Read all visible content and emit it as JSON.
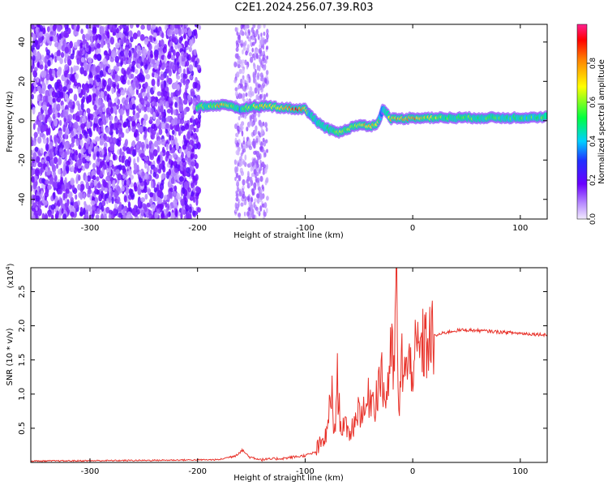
{
  "title": "C2E1.2024.256.07.39.R03",
  "colors": {
    "snr_line": "#e8322a",
    "frame": "#000000"
  },
  "chart_data": [
    {
      "type": "heatmap",
      "xlabel": "Height of straight line (km)",
      "ylabel": "Frequency (Hz)",
      "xlim": [
        -355,
        125
      ],
      "ylim": [
        -50,
        49
      ],
      "xticks": [
        -300,
        -200,
        -100,
        0,
        100
      ],
      "xtick_labels": [
        "-300",
        "-200",
        "-100",
        "0",
        "100"
      ],
      "yticks": [
        -40,
        -20,
        0,
        20,
        40
      ],
      "ytick_labels": [
        "-40",
        "-20",
        "0",
        "20",
        "40"
      ],
      "colorbar": {
        "label": "Normalized spectral amplitude",
        "range": [
          0,
          1
        ],
        "ticks": [
          0.0,
          0.2,
          0.4,
          0.6,
          0.8
        ],
        "tick_labels": [
          "0.0",
          "0.2",
          "0.4",
          "0.6",
          "0.8"
        ]
      },
      "noise_region_x": [
        -355,
        -198
      ],
      "noise_band_x": [
        -165,
        -135
      ],
      "ridge": [
        {
          "x": -200,
          "y": 7,
          "a": 0.5
        },
        {
          "x": -190,
          "y": 7.5,
          "a": 0.55
        },
        {
          "x": -178,
          "y": 8,
          "a": 0.75
        },
        {
          "x": -168,
          "y": 7,
          "a": 0.5
        },
        {
          "x": -160,
          "y": 6,
          "a": 0.45
        },
        {
          "x": -150,
          "y": 7,
          "a": 0.6
        },
        {
          "x": -135,
          "y": 7.5,
          "a": 0.65
        },
        {
          "x": -120,
          "y": 6.5,
          "a": 0.7
        },
        {
          "x": -108,
          "y": 6,
          "a": 0.85
        },
        {
          "x": -100,
          "y": 6,
          "a": 0.7
        },
        {
          "x": -95,
          "y": 3,
          "a": 0.45
        },
        {
          "x": -88,
          "y": -1,
          "a": 0.45
        },
        {
          "x": -80,
          "y": -4,
          "a": 0.5
        },
        {
          "x": -70,
          "y": -6,
          "a": 0.55
        },
        {
          "x": -60,
          "y": -4,
          "a": 0.6
        },
        {
          "x": -50,
          "y": -2,
          "a": 0.65
        },
        {
          "x": -40,
          "y": -3,
          "a": 0.8
        },
        {
          "x": -32,
          "y": -1,
          "a": 0.6
        },
        {
          "x": -28,
          "y": 6,
          "a": 0.35
        },
        {
          "x": -20,
          "y": 1,
          "a": 0.7
        },
        {
          "x": -10,
          "y": 1,
          "a": 0.75
        },
        {
          "x": 0,
          "y": 1.5,
          "a": 0.8
        },
        {
          "x": 10,
          "y": 1.5,
          "a": 0.65
        },
        {
          "x": 30,
          "y": 1.5,
          "a": 0.55
        },
        {
          "x": 60,
          "y": 1.5,
          "a": 0.5
        },
        {
          "x": 90,
          "y": 1.5,
          "a": 0.5
        },
        {
          "x": 125,
          "y": 2,
          "a": 0.5
        }
      ]
    },
    {
      "type": "line",
      "xlabel": "Height of straight line (km)",
      "ylabel": "SNR (10 * v/v)",
      "y_scale_label": "(x10",
      "y_scale_exponent": "4",
      "y_scale_close": ")",
      "xlim": [
        -355,
        125
      ],
      "ylim": [
        0,
        2.85
      ],
      "xticks": [
        -300,
        -200,
        -100,
        0,
        100
      ],
      "xtick_labels": [
        "-300",
        "-200",
        "-100",
        "0",
        "100"
      ],
      "yticks": [
        0.5,
        1.0,
        1.5,
        2.0,
        2.5
      ],
      "ytick_labels": [
        "0.5",
        "1.0",
        "1.5",
        "2.0",
        "2.5"
      ],
      "series": [
        {
          "x": [
            -355,
            -250,
            -180,
            -165,
            -158,
            -152,
            -140,
            -120,
            -100,
            -90,
            -80,
            -75,
            -73,
            -70,
            -67,
            -64,
            -60,
            -55,
            -50,
            -45,
            -40,
            -35,
            -30,
            -25,
            -20,
            -17,
            -15,
            -13,
            -10,
            -5,
            0,
            10,
            20,
            30,
            40,
            50,
            60,
            70,
            80,
            90,
            100,
            110,
            125
          ],
          "y": [
            0.02,
            0.03,
            0.04,
            0.1,
            0.18,
            0.08,
            0.04,
            0.06,
            0.1,
            0.15,
            0.4,
            1.1,
            0.3,
            1.2,
            0.5,
            0.6,
            0.4,
            0.55,
            0.8,
            0.7,
            1.0,
            0.9,
            1.3,
            0.9,
            1.6,
            1.3,
            2.85,
            0.6,
            1.5,
            1.3,
            1.5,
            1.7,
            1.85,
            1.9,
            1.93,
            1.94,
            1.93,
            1.92,
            1.91,
            1.9,
            1.89,
            1.88,
            1.87
          ]
        }
      ]
    }
  ]
}
